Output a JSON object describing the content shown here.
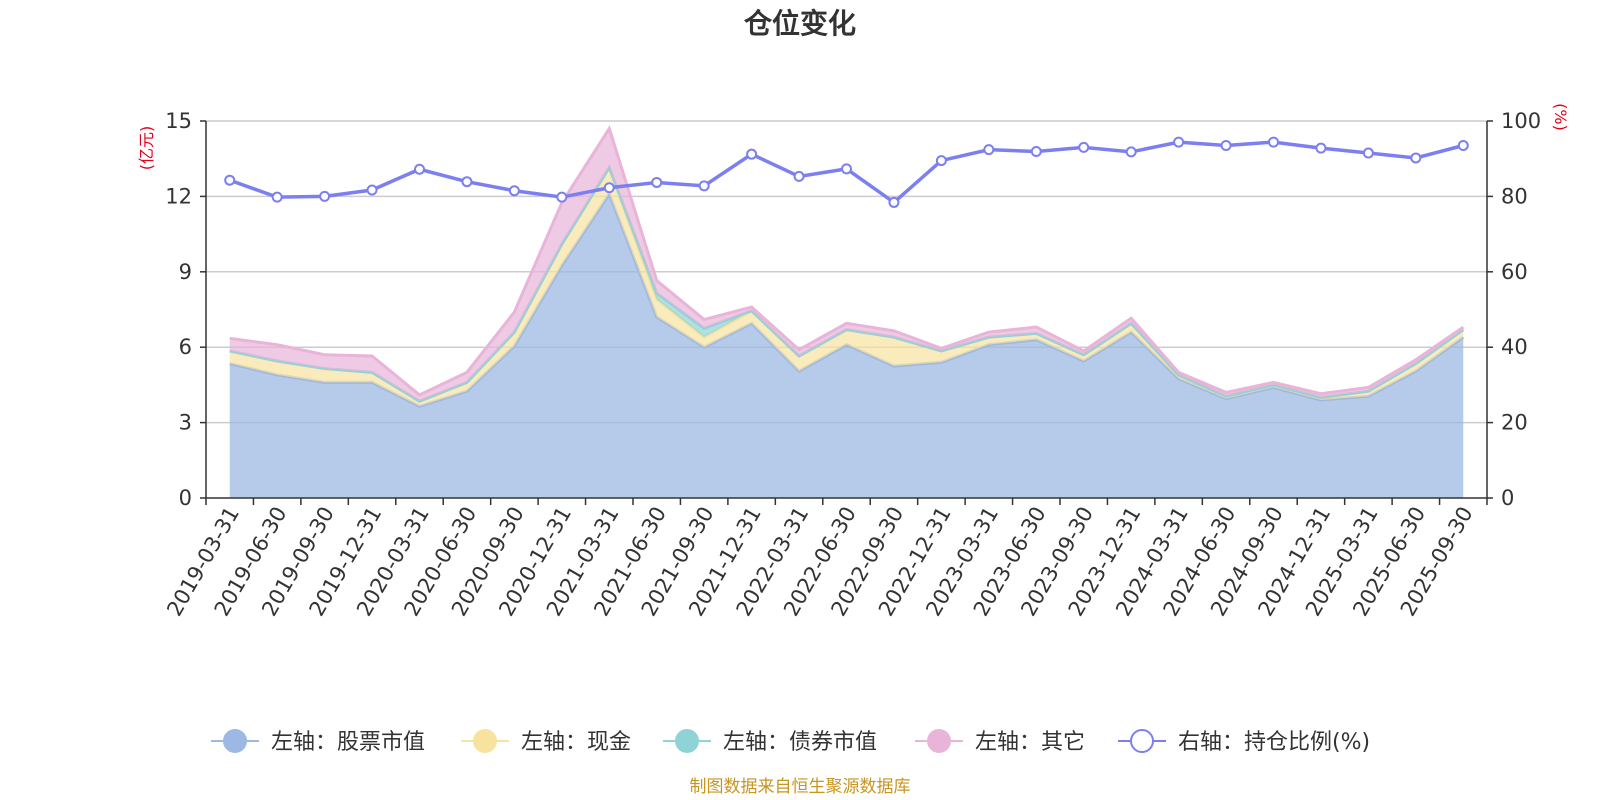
{
  "chart_data": {
    "type": "area",
    "title": "仓位变化",
    "left_axis_unit": "(亿元)",
    "right_axis_unit": "(%)",
    "left_ylim": [
      0,
      15
    ],
    "left_ticks": [
      "0",
      "3",
      "6",
      "9",
      "12",
      "15"
    ],
    "right_ylim": [
      0,
      100
    ],
    "right_ticks": [
      "0",
      "20",
      "40",
      "60",
      "80",
      "100"
    ],
    "categories": [
      "2019-03-31",
      "2019-06-30",
      "2019-09-30",
      "2019-12-31",
      "2020-03-31",
      "2020-06-30",
      "2020-09-30",
      "2020-12-31",
      "2021-03-31",
      "2021-06-30",
      "2021-09-30",
      "2021-12-31",
      "2022-03-31",
      "2022-06-30",
      "2022-09-30",
      "2022-12-31",
      "2023-03-31",
      "2023-06-30",
      "2023-09-30",
      "2023-12-31",
      "2024-03-31",
      "2024-06-30",
      "2024-09-30",
      "2024-12-31",
      "2025-03-31",
      "2025-06-30",
      "2025-09-30"
    ],
    "series": [
      {
        "name": "左轴：股票市值",
        "axis": "left",
        "stacked": true,
        "color": "#9db8e2",
        "values": [
          5.35,
          4.9,
          4.6,
          4.6,
          3.65,
          4.25,
          6.05,
          9.25,
          12.1,
          7.2,
          6.0,
          6.95,
          5.05,
          6.1,
          5.25,
          5.4,
          6.1,
          6.3,
          5.45,
          6.6,
          4.75,
          3.95,
          4.4,
          3.9,
          4.05,
          5.05,
          6.4
        ]
      },
      {
        "name": "左轴：现金",
        "axis": "left",
        "stacked": true,
        "color": "#f7e2a0",
        "values": [
          0.5,
          0.55,
          0.55,
          0.4,
          0.2,
          0.35,
          0.55,
          0.85,
          1.05,
          0.7,
          0.4,
          0.5,
          0.6,
          0.6,
          1.15,
          0.45,
          0.3,
          0.25,
          0.25,
          0.35,
          0.15,
          0.1,
          0.1,
          0.1,
          0.2,
          0.3,
          0.3
        ]
      },
      {
        "name": "左轴：债券市值",
        "axis": "left",
        "stacked": true,
        "color": "#8fd3d6",
        "values": [
          0,
          0,
          0,
          0,
          0,
          0,
          0,
          0,
          0,
          0.25,
          0.35,
          0,
          0,
          0,
          0,
          0,
          0,
          0,
          0,
          0,
          0,
          0,
          0,
          0,
          0,
          0,
          0
        ]
      },
      {
        "name": "左轴：其它",
        "axis": "left",
        "stacked": true,
        "color": "#e8b4d8",
        "values": [
          0.5,
          0.65,
          0.55,
          0.65,
          0.25,
          0.4,
          0.8,
          1.65,
          1.55,
          0.5,
          0.35,
          0.15,
          0.25,
          0.25,
          0.25,
          0.1,
          0.2,
          0.25,
          0.15,
          0.2,
          0.1,
          0.15,
          0.1,
          0.15,
          0.15,
          0.15,
          0.1
        ]
      },
      {
        "name": "右轴：持仓比例(%)",
        "axis": "right",
        "type": "line",
        "color": "#7b7ff0",
        "values": [
          84.3,
          79.8,
          80.0,
          81.7,
          87.2,
          83.9,
          81.5,
          79.8,
          82.3,
          83.7,
          82.8,
          91.2,
          85.3,
          87.3,
          78.4,
          89.5,
          92.4,
          91.9,
          93.0,
          91.8,
          94.4,
          93.5,
          94.4,
          92.8,
          91.5,
          90.2,
          93.5
        ]
      }
    ]
  },
  "footer": {
    "source": "制图数据来自恒生聚源数据库"
  }
}
